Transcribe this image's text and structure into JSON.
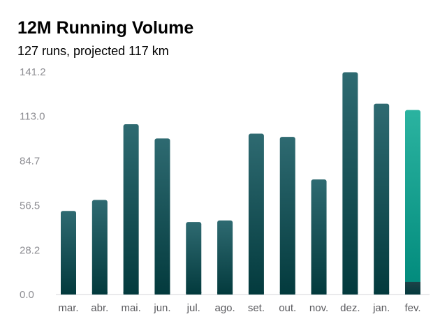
{
  "header": {
    "title": "12M Running Volume",
    "subtitle": "127 runs, projected 117 km"
  },
  "colors": {
    "bar_top": "#2e6a71",
    "bar_bottom": "#033a3d",
    "projected_top": "#2bb3a0",
    "projected_bottom": "#00897b",
    "actual_partial": "#1d4248",
    "axis_text": "#8e8e93",
    "category_text": "#5a5a5e",
    "gridline": "#d1d1d6"
  },
  "chart_data": {
    "type": "bar",
    "title": "12M Running Volume",
    "subtitle": "127 runs, projected 117 km",
    "xlabel": "",
    "ylabel": "",
    "categories": [
      "mar.",
      "abr.",
      "mai.",
      "jun.",
      "jul.",
      "ago.",
      "set.",
      "out.",
      "nov.",
      "dez.",
      "jan.",
      "fev."
    ],
    "values": [
      53,
      60,
      108,
      99,
      46,
      47,
      102,
      100,
      73,
      141,
      121,
      117
    ],
    "yticks": [
      "0.0",
      "28.2",
      "56.5",
      "84.7",
      "113.0",
      "141.2"
    ],
    "ylim": [
      0,
      141.2
    ],
    "grid": true,
    "legend": "none",
    "projected": {
      "category": "fev.",
      "projected_value": 117,
      "actual_value": 8
    }
  }
}
